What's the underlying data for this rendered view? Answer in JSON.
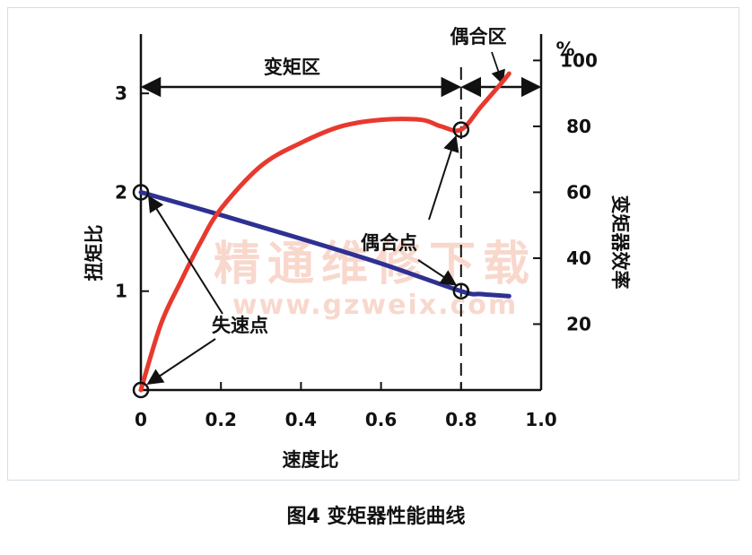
{
  "chart_data": {
    "type": "line",
    "x": [
      0,
      0.05,
      0.1,
      0.15,
      0.2,
      0.3,
      0.4,
      0.5,
      0.6,
      0.7,
      0.75,
      0.8,
      0.85,
      0.9,
      0.92
    ],
    "xlabel": "速度比",
    "xlim": [
      0,
      1.0
    ],
    "xticks": [
      "0",
      "0.2",
      "0.4",
      "0.6",
      "0.8",
      "1.0"
    ],
    "ylabel_left": "扭矩比",
    "ylim_left": [
      0,
      3.6
    ],
    "yticks_left": [
      "1",
      "2",
      "3"
    ],
    "ylabel_right": "变矩器效率",
    "yunit_right": "%",
    "ylim_right": [
      0,
      108
    ],
    "yticks_right": [
      "20",
      "40",
      "60",
      "80",
      "100"
    ],
    "series": [
      {
        "axis": "left",
        "color": "#2e3192",
        "x": [
          0,
          0.2,
          0.4,
          0.6,
          0.8,
          0.85,
          0.92
        ],
        "values": [
          2.0,
          1.77,
          1.53,
          1.28,
          1.0,
          0.97,
          0.95
        ]
      },
      {
        "axis": "right",
        "color": "#e8392e",
        "x": [
          0,
          0.05,
          0.1,
          0.15,
          0.2,
          0.3,
          0.4,
          0.5,
          0.6,
          0.7,
          0.75,
          0.8,
          0.85,
          0.9,
          0.92
        ],
        "values": [
          0,
          20,
          33,
          45,
          55,
          68,
          75,
          80,
          82,
          82,
          80,
          79,
          86,
          93,
          96
        ]
      }
    ],
    "markers": [
      {
        "x": 0,
        "axis": "left",
        "value": 2.0
      },
      {
        "x": 0,
        "axis": "left",
        "value": 0
      },
      {
        "x": 0.8,
        "axis": "left",
        "value": 1.0
      },
      {
        "x": 0.8,
        "axis": "right",
        "value": 79
      }
    ],
    "coupling_point_x": 0.8,
    "regions": [
      {
        "label": "变矩区",
        "from": 0,
        "to": 0.8
      },
      {
        "label": "偶合区",
        "from": 0.8,
        "to": 1.0
      }
    ],
    "annotations": {
      "stall_point": "失速点",
      "coupling_point": "偶合点"
    },
    "grid": false,
    "legend": "none"
  },
  "watermark": {
    "cn": "精通维修下载",
    "url": "www.gzweix.com"
  },
  "caption": "图4 变矩器性能曲线",
  "colors": {
    "torque": "#2e3192",
    "efficiency": "#e8392e",
    "watermark": "#f4b9a6"
  }
}
